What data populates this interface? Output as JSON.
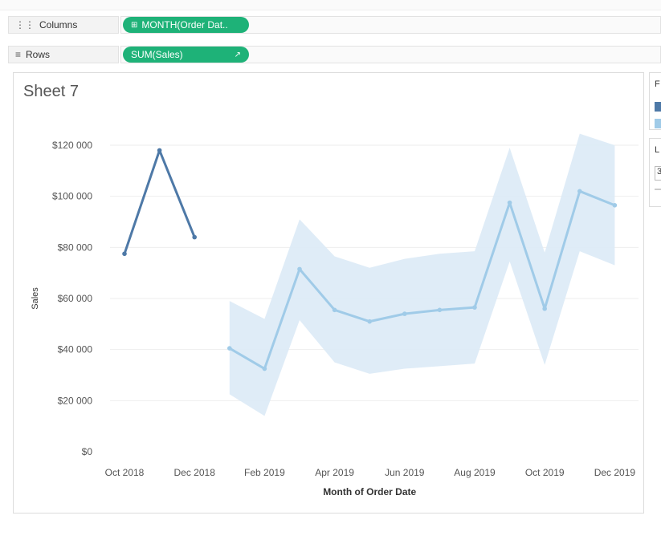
{
  "shelves": {
    "columns_label": "Columns",
    "columns_pill": "MONTH(Order Dat..",
    "rows_label": "Rows",
    "rows_pill": "SUM(Sales)"
  },
  "sheet": {
    "title": "Sheet 7"
  },
  "legend": {
    "title_partial": "F",
    "actual_color": "#4e79a7",
    "forecast_color": "#a0cbe8"
  },
  "param": {
    "title_partial": "L",
    "value_partial": "3"
  },
  "colors": {
    "actual": "#4e79a7",
    "forecast": "#a0cbe8",
    "band": "#dceaf6",
    "pill": "#1eb278",
    "grid": "#eeeeee"
  },
  "chart_data": {
    "type": "line",
    "title": "Sheet 7",
    "xlabel": "Month of Order Date",
    "ylabel": "Sales",
    "ylim": [
      0,
      130000
    ],
    "y_ticks": [
      0,
      20000,
      40000,
      60000,
      80000,
      100000,
      120000
    ],
    "y_tick_labels": [
      "$0",
      "$20 000",
      "$40 000",
      "$60 000",
      "$80 000",
      "$100 000",
      "$120 000"
    ],
    "months": [
      "Oct 2018",
      "Nov 2018",
      "Dec 2018",
      "Jan 2019",
      "Feb 2019",
      "Mar 2019",
      "Apr 2019",
      "May 2019",
      "Jun 2019",
      "Jul 2019",
      "Aug 2019",
      "Sep 2019",
      "Oct 2019",
      "Nov 2019",
      "Dec 2019"
    ],
    "x_tick_labels": [
      "Oct 2018",
      "Dec 2018",
      "Feb 2019",
      "Apr 2019",
      "Jun 2019",
      "Aug 2019",
      "Oct 2019",
      "Dec 2019"
    ],
    "grid": true,
    "series": [
      {
        "role": "actual",
        "x": [
          "Oct 2018",
          "Nov 2018",
          "Dec 2018"
        ],
        "values": [
          77500,
          118000,
          84000
        ]
      },
      {
        "role": "forecast",
        "x": [
          "Jan 2019",
          "Feb 2019",
          "Mar 2019",
          "Apr 2019",
          "May 2019",
          "Jun 2019",
          "Jul 2019",
          "Aug 2019",
          "Sep 2019",
          "Oct 2019",
          "Nov 2019",
          "Dec 2019"
        ],
        "values": [
          40500,
          32500,
          71500,
          55500,
          51000,
          54000,
          55500,
          56500,
          97500,
          56000,
          102000,
          96500
        ],
        "upper": [
          59000,
          52000,
          91000,
          76500,
          72000,
          75500,
          77500,
          78500,
          119000,
          78000,
          124500,
          120000
        ],
        "lower": [
          22500,
          14000,
          51500,
          35000,
          30500,
          32500,
          33500,
          34500,
          74500,
          34000,
          78500,
          73000
        ]
      }
    ]
  }
}
